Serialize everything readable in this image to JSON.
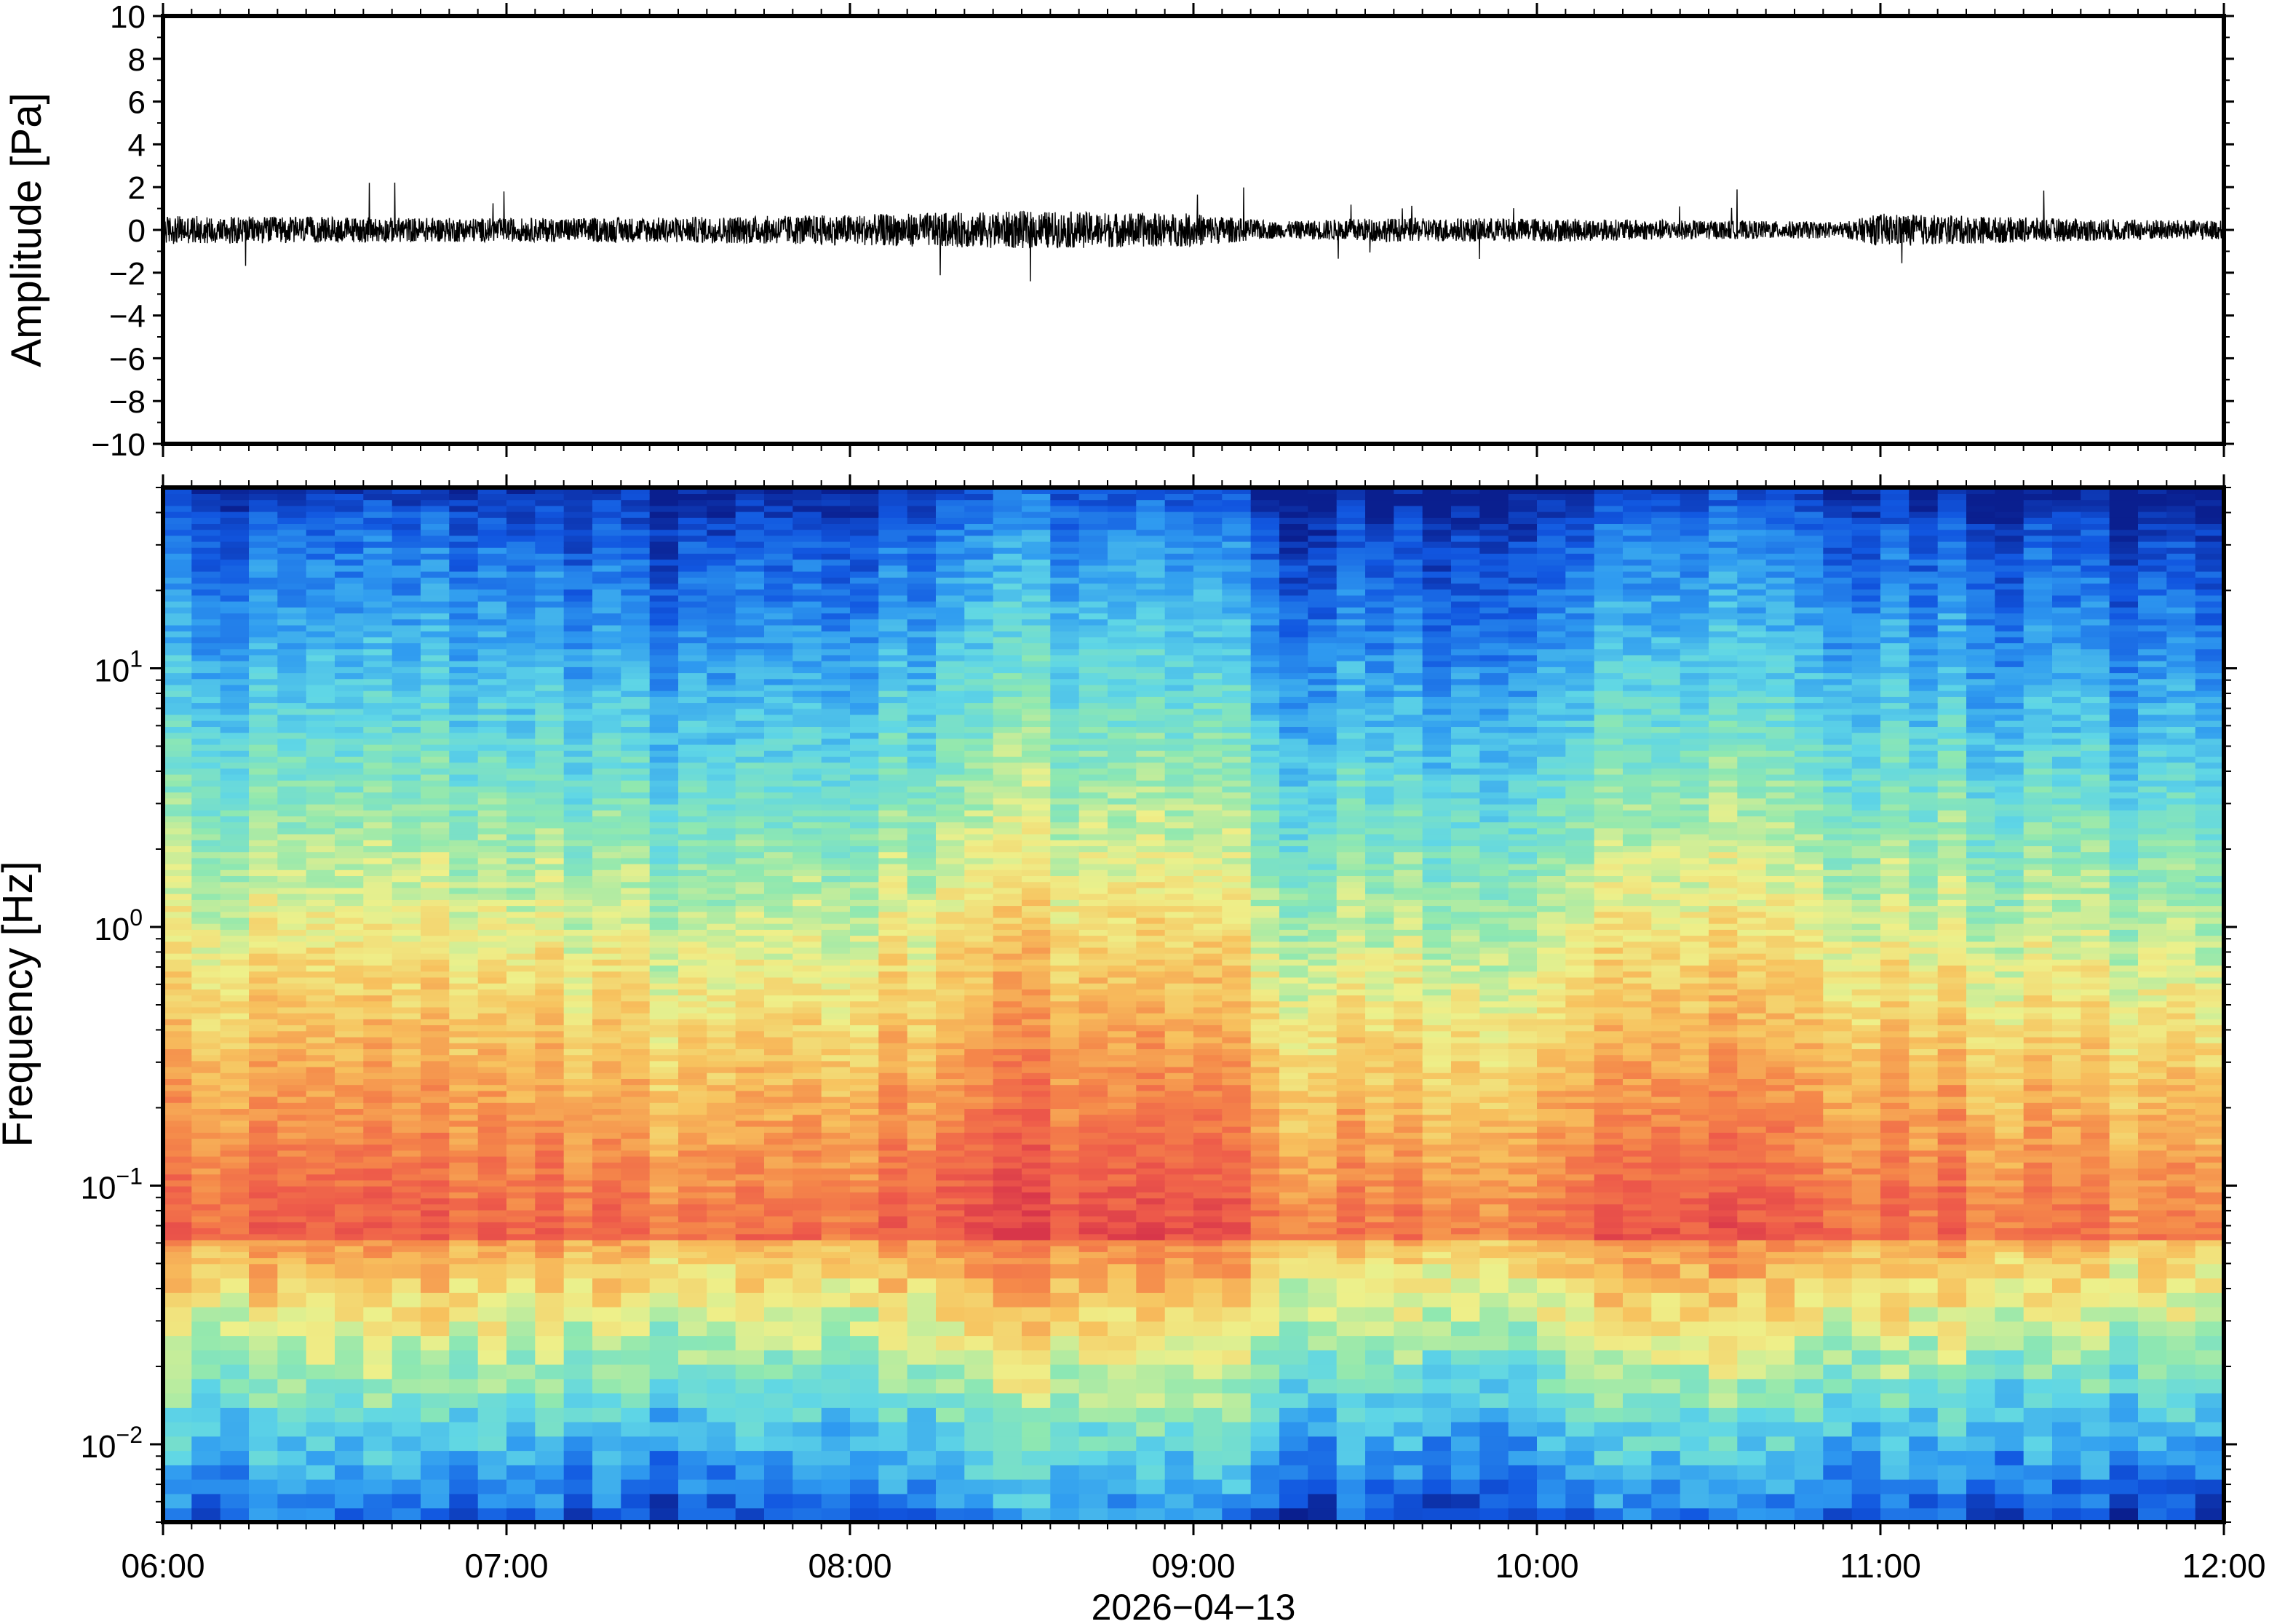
{
  "figure": {
    "date_label": "2026−04−13"
  },
  "chart_data": [
    {
      "type": "line",
      "panel": "waveform",
      "ylabel": "Amplitude [Pa]",
      "xlabel": "",
      "ylim": [
        -10,
        10
      ],
      "yticks": [
        10,
        8,
        6,
        4,
        2,
        0,
        -2,
        -4,
        -6,
        -8,
        -10
      ],
      "ytick_labels": [
        "10",
        "8",
        "6",
        "4",
        "2",
        "0",
        "−2",
        "−4",
        "−6",
        "−8",
        "−10"
      ],
      "x_range": [
        "06:00",
        "12:00"
      ],
      "series": [
        {
          "color": "#000000",
          "envelope_hours": [
            6.0,
            6.5,
            7.0,
            7.5,
            8.0,
            8.5,
            9.0,
            9.25,
            9.4,
            9.5,
            10.0,
            10.5,
            10.9,
            11.0,
            11.5,
            12.0
          ],
          "envelope_pa": [
            0.6,
            0.55,
            0.5,
            0.55,
            0.65,
            0.8,
            0.7,
            0.35,
            0.45,
            0.5,
            0.5,
            0.4,
            0.35,
            0.7,
            0.5,
            0.4
          ],
          "peak_pa": 2.4
        }
      ]
    },
    {
      "type": "heatmap",
      "panel": "spectrogram",
      "ylabel": "Frequency [Hz]",
      "xlabel": "2026−04−13",
      "y_scale": "log",
      "ylim_hz": [
        0.005,
        50
      ],
      "yticks_hz": [
        10,
        1,
        0.1,
        0.01
      ],
      "ytick_labels": [
        {
          "base": "10",
          "exp": "1"
        },
        {
          "base": "10",
          "exp": "0"
        },
        {
          "base": "10",
          "exp": "−1"
        },
        {
          "base": "10",
          "exp": "−2"
        }
      ],
      "x_ticks": [
        "06:00",
        "07:00",
        "08:00",
        "09:00",
        "10:00",
        "11:00",
        "12:00"
      ],
      "colormap": "jet-like (blue low power → red high power)",
      "colormap_stops": [
        "#0a1f8f",
        "#1156e0",
        "#2f9bf0",
        "#5fd6e6",
        "#8fe8b0",
        "#eef08a",
        "#f7c25e",
        "#f5894a",
        "#ee5a4a",
        "#d8364a"
      ]
    }
  ]
}
